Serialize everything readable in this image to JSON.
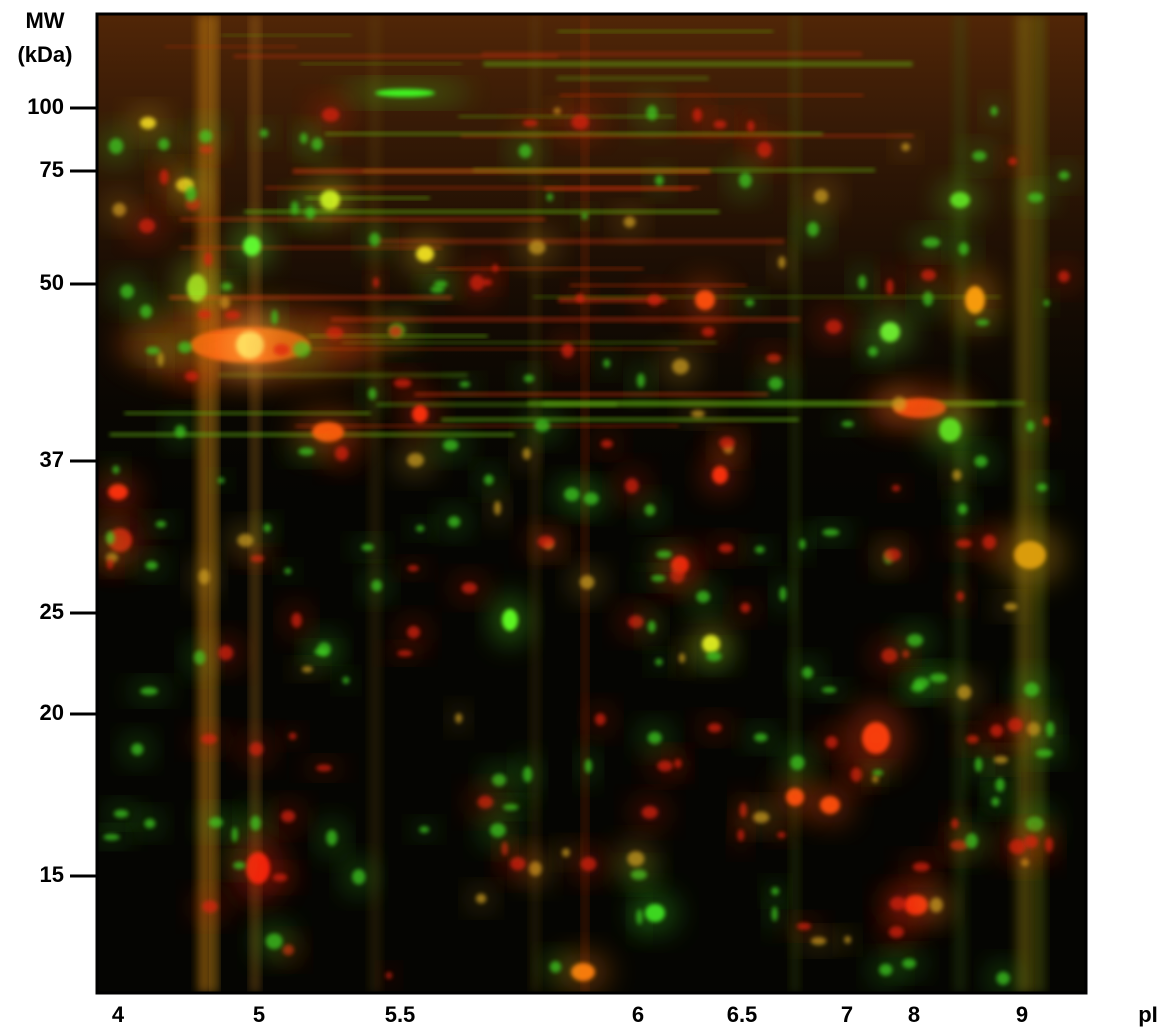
{
  "y_axis": {
    "title_lines": [
      "MW",
      "(kDa)"
    ],
    "ticks": [
      "100",
      "75",
      "50",
      "37",
      "25",
      "20",
      "15"
    ]
  },
  "x_axis": {
    "title": "pI",
    "ticks": [
      "4",
      "5",
      "5.5",
      "6",
      "6.5",
      "7",
      "8",
      "9"
    ]
  }
}
